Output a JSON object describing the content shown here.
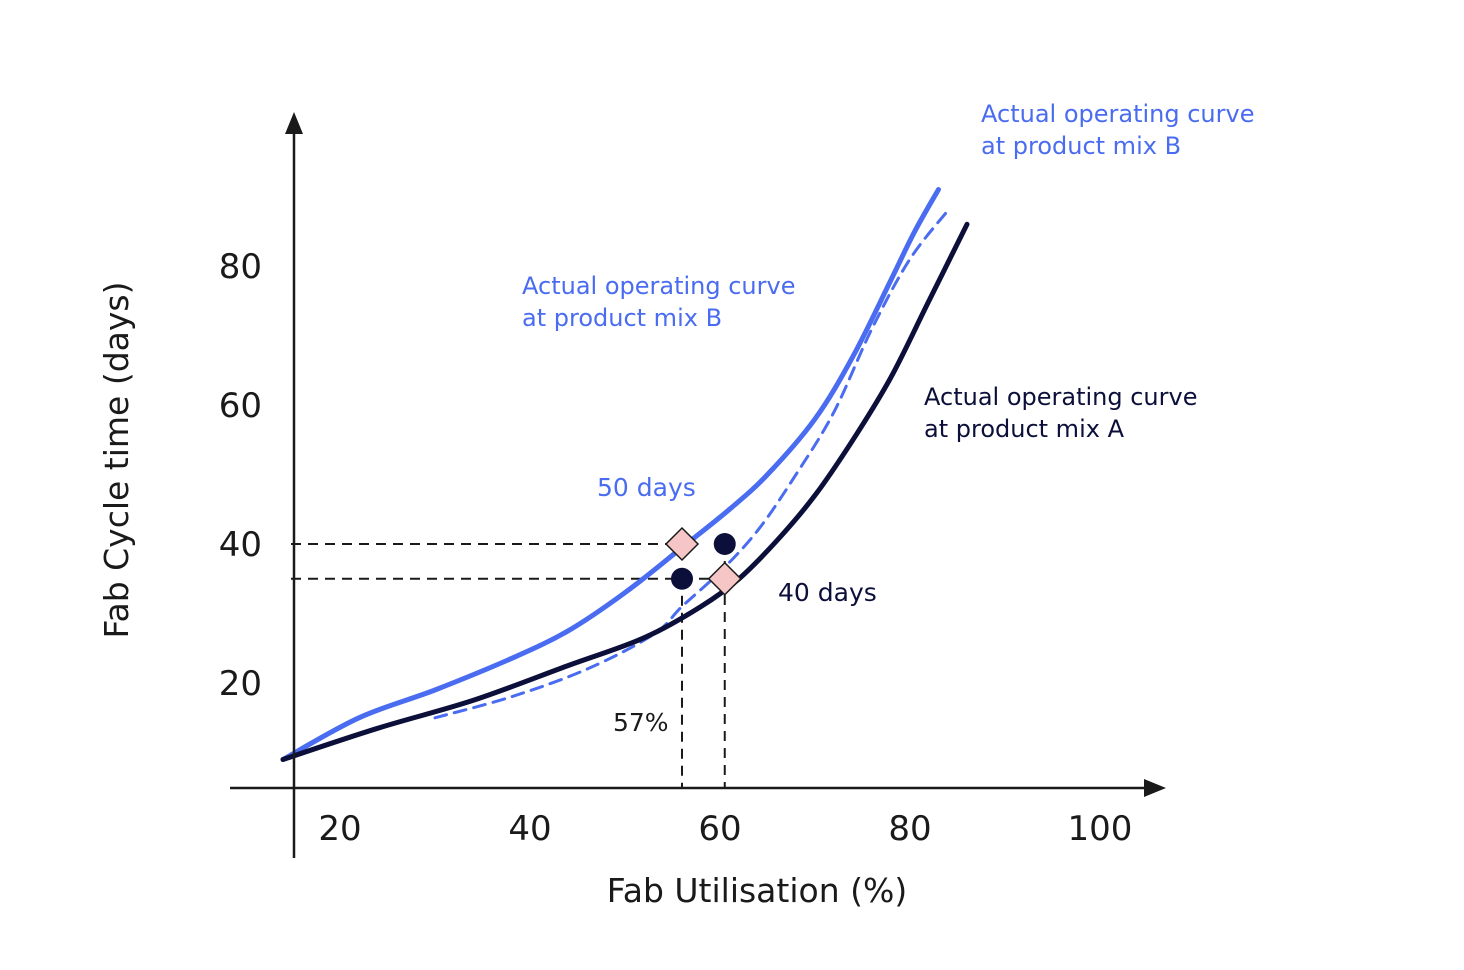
{
  "chart_data": {
    "type": "line",
    "xlabel": "Fab Utilisation (%)",
    "ylabel": "Fab Cycle time (days)",
    "x_ticks": [
      20,
      40,
      60,
      80,
      100
    ],
    "y_ticks": [
      20,
      40,
      60,
      80
    ],
    "grid": false,
    "colors": {
      "mix_b": "#4a6cf0",
      "mix_a": "#0b0f3a",
      "marker_diamond": "#f6c6c6",
      "marker_dot": "#0b0f3a",
      "guide": "#1a1a1a"
    },
    "series": [
      {
        "name": "Actual operating curve at product mix B",
        "line": "solid",
        "x": [
          14,
          22,
          30,
          38,
          44,
          50,
          56,
          61,
          65,
          70,
          74,
          78,
          80.5,
          83
        ],
        "y": [
          9,
          15,
          19,
          23.5,
          27.5,
          33,
          39.5,
          45,
          50,
          58,
          67,
          78,
          85,
          91
        ]
      },
      {
        "name": "",
        "line": "dashed",
        "x": [
          30,
          38,
          46,
          53,
          56,
          60,
          64,
          68,
          72,
          76,
          80,
          84
        ],
        "y": [
          15,
          18,
          22,
          27,
          31,
          36,
          42,
          50,
          59,
          71,
          81,
          88
        ]
      },
      {
        "name": "Actual operating curve at product mix A",
        "line": "solid",
        "x": [
          14,
          24,
          34,
          44,
          52,
          58,
          62,
          66,
          70,
          74,
          78,
          82,
          86
        ],
        "y": [
          9,
          13.5,
          17.5,
          22.5,
          26.5,
          31,
          35,
          40.5,
          47,
          55,
          64,
          75,
          86
        ]
      }
    ],
    "reference_lines": {
      "y": [
        40,
        35
      ],
      "x": [
        56,
        60.5
      ]
    },
    "markers": [
      {
        "type": "diamond",
        "x": 56,
        "y": 40
      },
      {
        "type": "dot",
        "x": 60.5,
        "y": 40
      },
      {
        "type": "dot",
        "x": 56,
        "y": 35
      },
      {
        "type": "diamond",
        "x": 60.5,
        "y": 35
      }
    ],
    "annotations": [
      {
        "text": "Actual operating curve",
        "color": "#4a6cf0"
      },
      {
        "text": "at product mix B",
        "color": "#4a6cf0"
      },
      {
        "text": "Actual operating curve",
        "color": "#4a6cf0"
      },
      {
        "text": "at product mix B",
        "color": "#4a6cf0"
      },
      {
        "text": "Actual operating curve",
        "color": "#0b0f3a"
      },
      {
        "text": "at product mix A",
        "color": "#0b0f3a"
      },
      {
        "text": "50 days",
        "color": "#4a6cf0"
      },
      {
        "text": "40 days",
        "color": "#0b0f3a"
      },
      {
        "text": "57%",
        "color": "#1a1a1a"
      }
    ]
  }
}
